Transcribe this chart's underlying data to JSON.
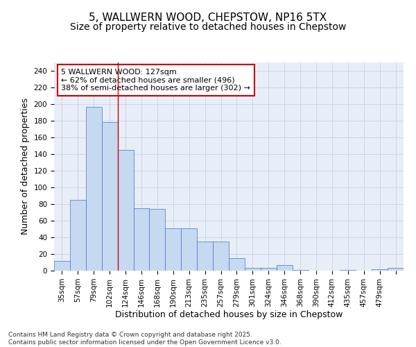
{
  "title1": "5, WALLWERN WOOD, CHEPSTOW, NP16 5TX",
  "title2": "Size of property relative to detached houses in Chepstow",
  "xlabel": "Distribution of detached houses by size in Chepstow",
  "ylabel": "Number of detached properties",
  "bar_values": [
    12,
    85,
    197,
    178,
    145,
    75,
    74,
    51,
    51,
    35,
    35,
    15,
    3,
    3,
    7,
    1,
    0,
    0,
    1,
    0,
    2,
    3
  ],
  "bin_labels": [
    "35sqm",
    "57sqm",
    "79sqm",
    "102sqm",
    "124sqm",
    "146sqm",
    "168sqm",
    "190sqm",
    "213sqm",
    "235sqm",
    "257sqm",
    "279sqm",
    "301sqm",
    "324sqm",
    "346sqm",
    "368sqm",
    "390sqm",
    "412sqm",
    "435sqm",
    "457sqm",
    "479sqm",
    ""
  ],
  "bar_color": "#c5d9f1",
  "bar_edge_color": "#4472c4",
  "vline_color": "#cc0000",
  "vline_x_index": 4,
  "annotation_text": "5 WALLWERN WOOD: 127sqm\n← 62% of detached houses are smaller (496)\n38% of semi-detached houses are larger (302) →",
  "annotation_box_color": "#ffffff",
  "annotation_box_edge": "#cc0000",
  "annotation_fontsize": 8,
  "ylim": [
    0,
    250
  ],
  "yticks": [
    0,
    20,
    40,
    60,
    80,
    100,
    120,
    140,
    160,
    180,
    200,
    220,
    240
  ],
  "grid_color": "#c0cce0",
  "background_color": "#e8eef8",
  "footer_text": "Contains HM Land Registry data © Crown copyright and database right 2025.\nContains public sector information licensed under the Open Government Licence v3.0.",
  "title1_fontsize": 11,
  "title2_fontsize": 10,
  "xlabel_fontsize": 9,
  "ylabel_fontsize": 9,
  "tick_fontsize": 7.5
}
